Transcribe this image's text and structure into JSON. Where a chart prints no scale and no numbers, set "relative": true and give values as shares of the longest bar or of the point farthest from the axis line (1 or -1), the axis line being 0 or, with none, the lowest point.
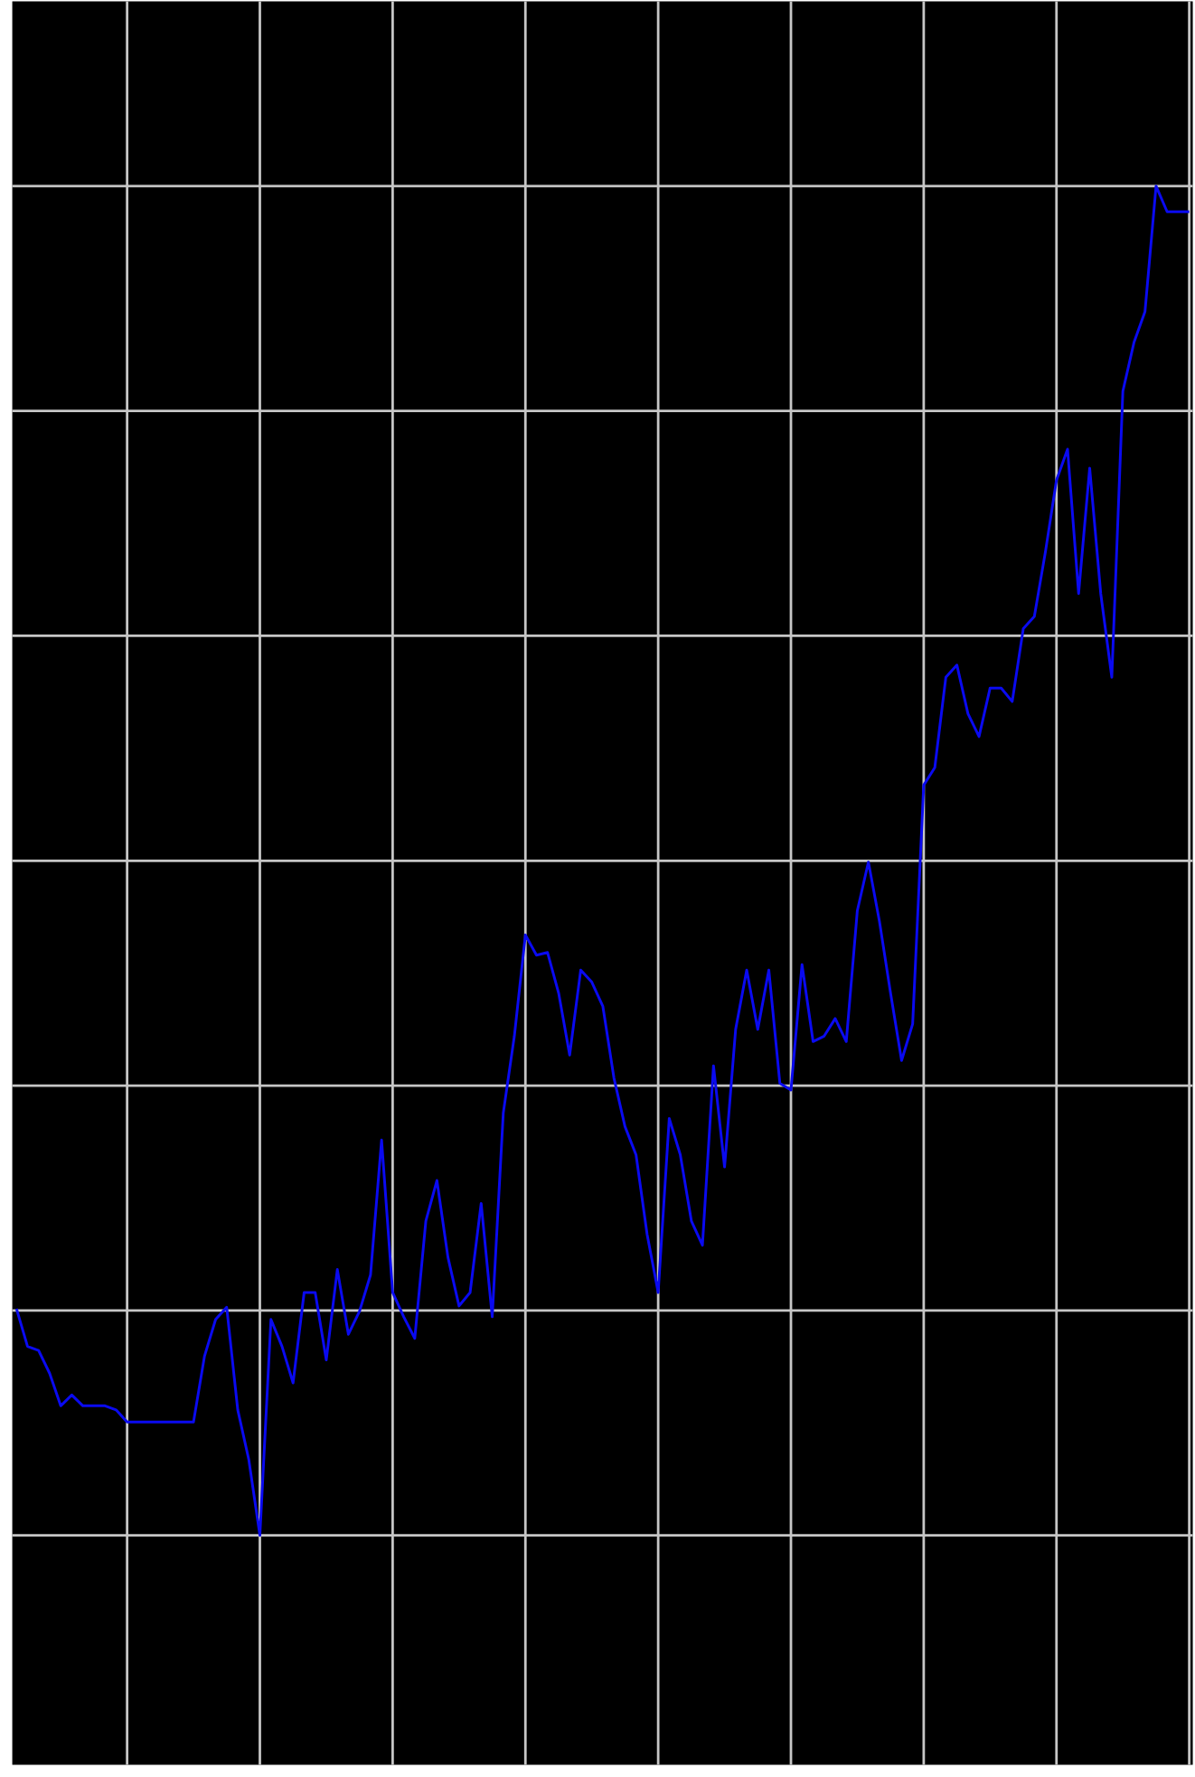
{
  "chart_data": {
    "type": "line",
    "relative": true,
    "grid": true,
    "marker": "none",
    "line_style": "solid",
    "categories": [
      null,
      null,
      null,
      null,
      null,
      null,
      null,
      null,
      null,
      null,
      null,
      null,
      null,
      null,
      null,
      null,
      null,
      null,
      null,
      null,
      null,
      null,
      null,
      null,
      null,
      null,
      null,
      null,
      null,
      null,
      null,
      null,
      null,
      null,
      null,
      null,
      null,
      null,
      null,
      null,
      null,
      null,
      null,
      null,
      null,
      null,
      null,
      null,
      null,
      null,
      null,
      null,
      null,
      null,
      null,
      null,
      null,
      null,
      null,
      null,
      null,
      null,
      null,
      null,
      null,
      null,
      null,
      null,
      null,
      null,
      null,
      null,
      null,
      null,
      null,
      null,
      null,
      null,
      null,
      null,
      null,
      null,
      null,
      null,
      null,
      null,
      null,
      null,
      null,
      null,
      null,
      null,
      null,
      null,
      null,
      null,
      null,
      null,
      null,
      null,
      null,
      null,
      null,
      null,
      null,
      null,
      null
    ],
    "series": [
      {
        "color": "#0a0af0",
        "values": [
          0.168,
          0.14,
          0.137,
          0.12,
          0.096,
          0.104,
          0.096,
          0.096,
          0.096,
          0.093,
          0.084,
          0.084,
          0.084,
          0.084,
          0.084,
          0.084,
          0.084,
          0.133,
          0.16,
          0.169,
          0.093,
          0.056,
          0,
          0.16,
          0.14,
          0.113,
          0.18,
          0.18,
          0.13,
          0.197,
          0.149,
          0.166,
          0.193,
          0.293,
          0.18,
          0.162,
          0.146,
          0.233,
          0.263,
          0.206,
          0.17,
          0.18,
          0.246,
          0.162,
          0.313,
          0.37,
          0.445,
          0.43,
          0.432,
          0.402,
          0.356,
          0.419,
          0.41,
          0.392,
          0.339,
          0.303,
          0.282,
          0.223,
          0.18,
          0.309,
          0.282,
          0.233,
          0.215,
          0.348,
          0.273,
          0.375,
          0.419,
          0.375,
          0.419,
          0.335,
          0.33,
          0.423,
          0.366,
          0.37,
          0.383,
          0.366,
          0.463,
          0.499,
          0.455,
          0.402,
          0.352,
          0.379,
          0.556,
          0.569,
          0.636,
          0.645,
          0.609,
          0.592,
          0.628,
          0.628,
          0.618,
          0.672,
          0.681,
          0.729,
          0.782,
          0.805,
          0.698,
          0.791,
          0.698,
          0.636,
          0.848,
          0.884,
          0.907,
          1,
          0.981,
          0.981,
          0.981
        ]
      }
    ]
  }
}
